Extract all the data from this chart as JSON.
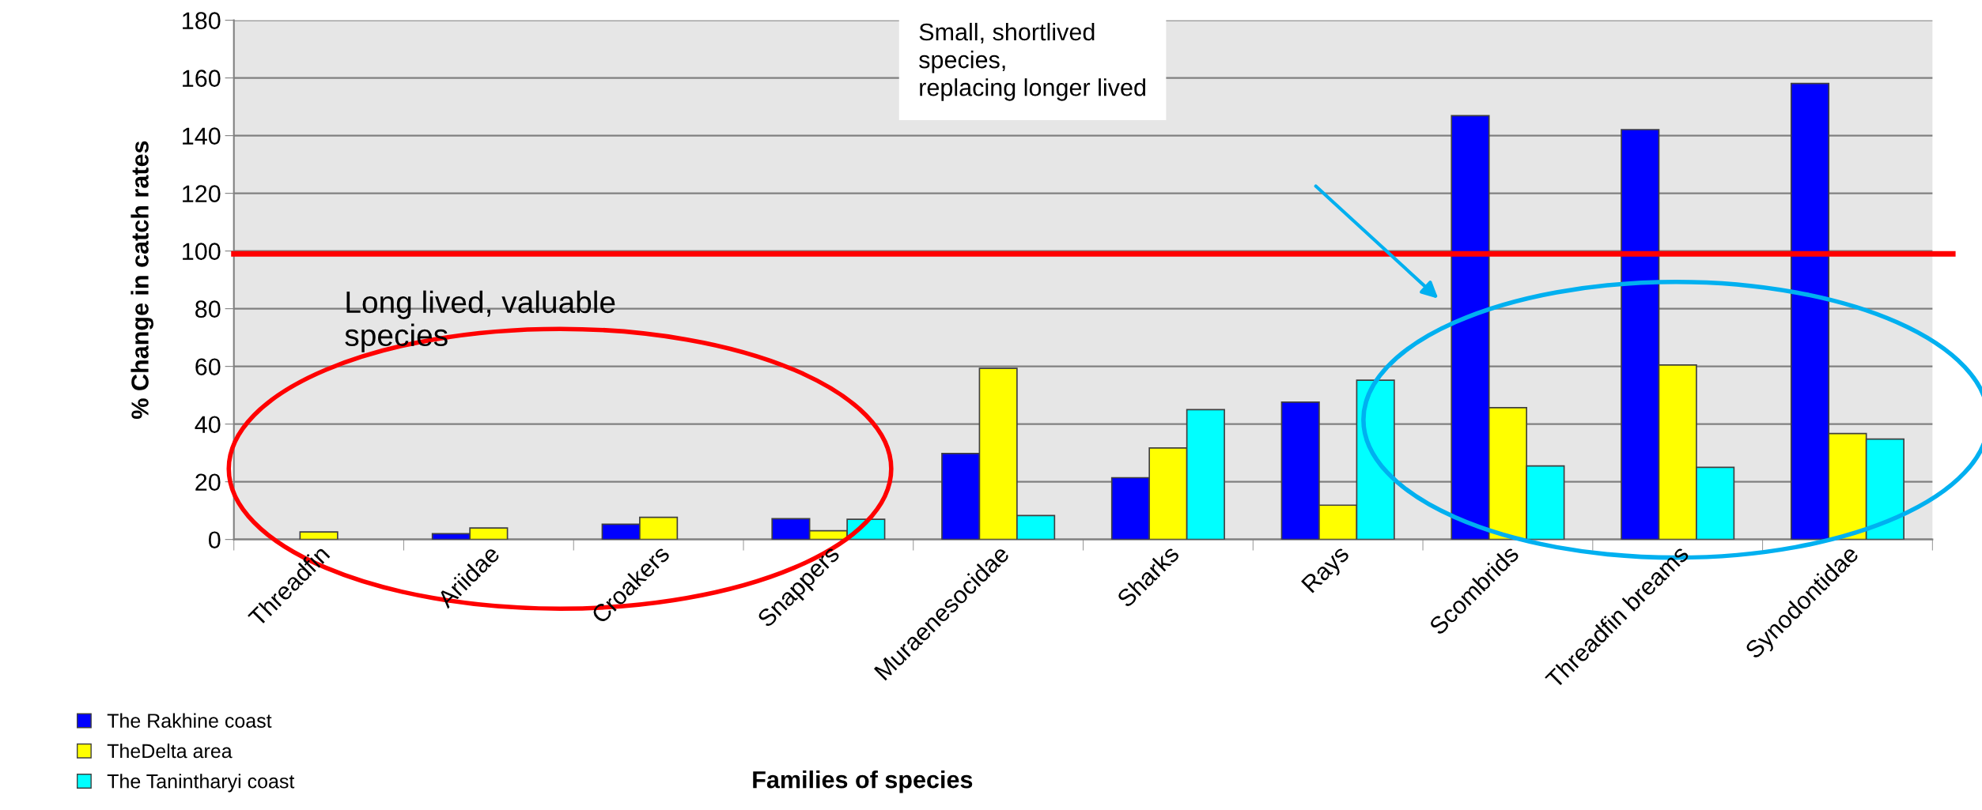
{
  "chart_data": {
    "type": "bar",
    "xlabel": "Families of species",
    "ylabel": "% Change in catch rates",
    "categories": [
      "Threadfin",
      "Ariidae",
      "Croakers",
      "Snappers",
      "Muraenesocidae",
      "Sharks",
      "Rays",
      "Scombrids",
      "Threadfin breams",
      "Synodontidae"
    ],
    "series": [
      {
        "name": "The Rakhine coast",
        "color": "#0000ff",
        "values": [
          null,
          2,
          5.3,
          7.2,
          29.8,
          21.4,
          47.6,
          146.9,
          142.1,
          158.1
        ]
      },
      {
        "name": "TheDelta area",
        "color": "#ffff00",
        "values": [
          2.6,
          4,
          7.7,
          3,
          59.3,
          31.7,
          11.9,
          45.7,
          60.5,
          36.7
        ]
      },
      {
        "name": "The Tanintharyi coast",
        "color": "#00ffff",
        "values": [
          null,
          null,
          null,
          7,
          8.3,
          45,
          55.2,
          25.5,
          25,
          34.8
        ]
      }
    ],
    "ylim": [
      0,
      180
    ],
    "yticks": [
      0,
      20,
      40,
      60,
      80,
      100,
      120,
      140,
      160,
      180
    ],
    "ref_lines": [
      {
        "axis": "y",
        "value": 99,
        "color": "#ff0000",
        "line_style": "solid"
      }
    ],
    "annotations": [
      "Long lived, valuable\nspecies",
      "Small, shortlived\nspecies,\nreplacing longer lived"
    ],
    "grid": "y",
    "legend": "bottom left"
  }
}
